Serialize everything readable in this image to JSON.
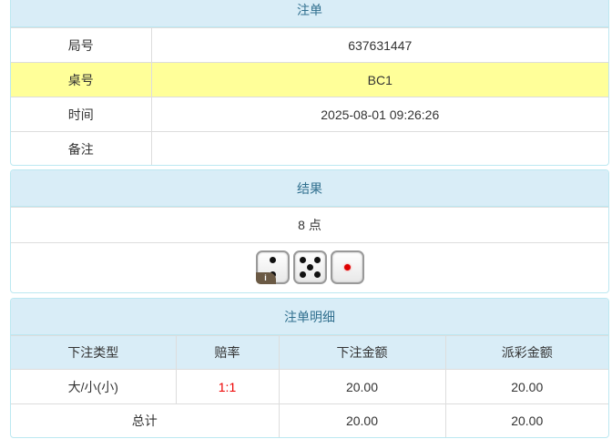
{
  "order": {
    "title": "注单",
    "rows": [
      {
        "label": "局号",
        "value": "637631447"
      },
      {
        "label": "桌号",
        "value": "BC1"
      },
      {
        "label": "时间",
        "value": "2025-08-01 09:26:26"
      },
      {
        "label": "备注",
        "value": ""
      }
    ],
    "highlight_color": "#ffff99"
  },
  "result": {
    "title": "结果",
    "points": "8 点",
    "dice": [
      2,
      5,
      1
    ],
    "info_label": "i"
  },
  "detail": {
    "title": "注单明细",
    "headers": [
      "下注类型",
      "赔率",
      "下注金额",
      "派彩金额"
    ],
    "rows": [
      {
        "type": "大/小(小)",
        "odds": "1:1",
        "bet": "20.00",
        "payout": "20.00"
      }
    ],
    "total": {
      "label": "总计",
      "bet": "20.00",
      "payout": "20.00"
    }
  }
}
